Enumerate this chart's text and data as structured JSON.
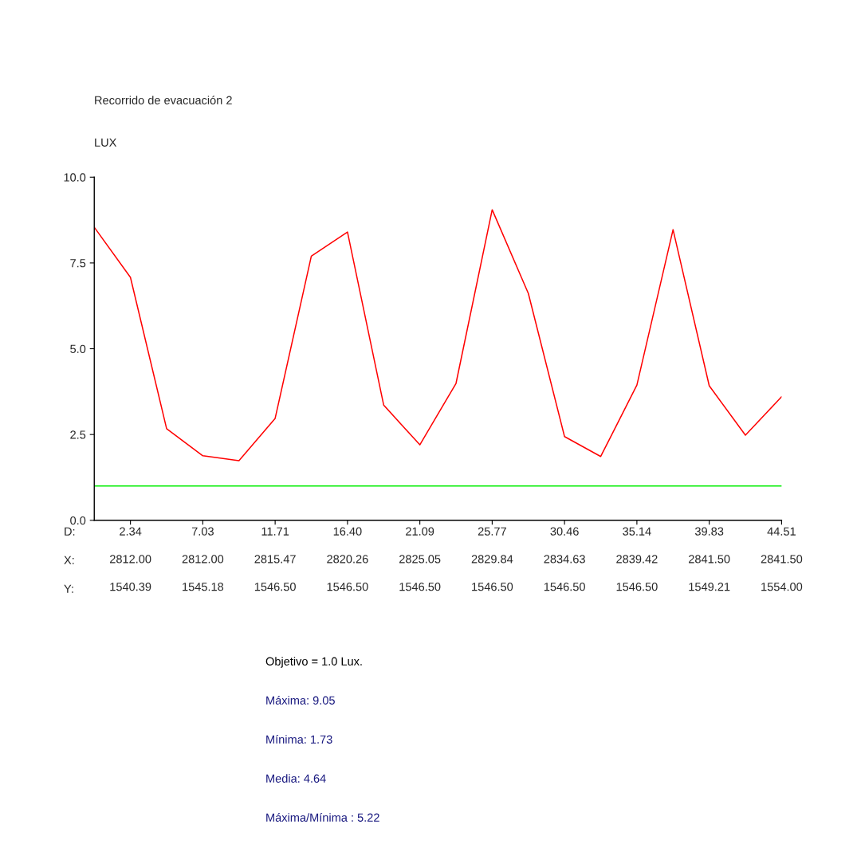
{
  "chart_data": {
    "type": "line",
    "title": "Recorrido de evacuación 2",
    "ylabel": "LUX",
    "categories": [
      null,
      "2.34\n2812.00\n1540.39",
      null,
      "7.03\n2812.00\n1545.18",
      null,
      "11.71\n2815.47\n1546.50",
      null,
      "16.40\n2820.26\n1546.50",
      null,
      "21.09\n2825.05\n1546.50",
      null,
      "25.77\n2829.84\n1546.50",
      null,
      "30.46\n2834.63\n1546.50",
      null,
      "35.14\n2839.42\n1546.50",
      null,
      "39.83\n2841.50\n1549.21",
      null,
      "44.51\n2841.50\n1554.00"
    ],
    "series": [
      {
        "color": "#ff0000",
        "values": [
          8.54,
          7.08,
          2.67,
          1.88,
          1.74,
          2.97,
          7.7,
          8.4,
          3.36,
          2.2,
          3.99,
          9.05,
          6.61,
          2.44,
          1.86,
          3.94,
          8.47,
          3.92,
          2.48,
          3.6
        ]
      }
    ],
    "ylim": [
      0,
      10
    ],
    "yticks": [
      {
        "value": 0,
        "label": "0.0"
      },
      {
        "value": 2.5,
        "label": "2.5"
      },
      {
        "value": 5,
        "label": "5.0"
      },
      {
        "value": 7.5,
        "label": "7.5"
      },
      {
        "value": 10,
        "label": "10.0"
      }
    ],
    "ref_lines": [
      {
        "axis": "y",
        "value": 1.0,
        "color": "#00ee00"
      }
    ],
    "grid": false,
    "marker": "none",
    "line_style": "solid",
    "annotations": [
      "D:",
      "X:",
      "Y:",
      "Objetivo = 1.0 Lux.",
      "Máxima: 9.05",
      "Mínima: 1.73",
      "Media: 4.64",
      "Máxima/Mínima : 5.22"
    ]
  }
}
